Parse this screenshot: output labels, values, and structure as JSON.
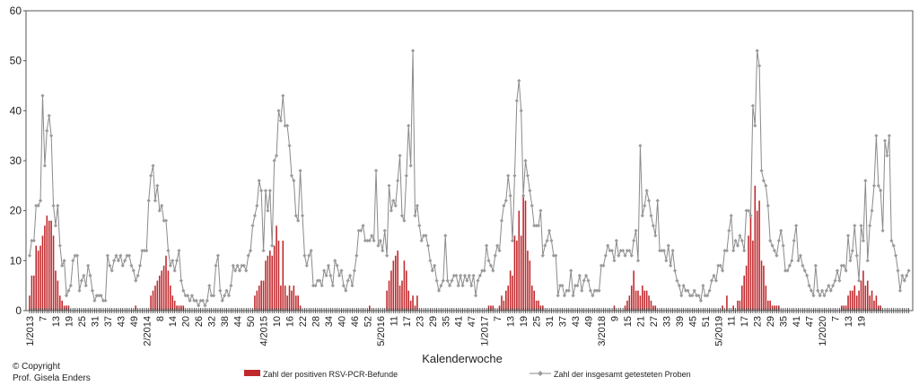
{
  "chart_data": {
    "type": "bar",
    "xlabel": "Kalenderwoche",
    "ylabel": "",
    "ylim": [
      0,
      60
    ],
    "yticks": [
      0,
      10,
      20,
      30,
      40,
      50,
      60
    ],
    "grid": false,
    "legend_position": "bottom",
    "x_tick_labels": [
      "1/2013",
      "7",
      "13",
      "19",
      "25",
      "31",
      "37",
      "43",
      "49",
      "2/2014",
      "8",
      "14",
      "20",
      "26",
      "32",
      "38",
      "44",
      "50",
      "4/2015",
      "10",
      "16",
      "22",
      "28",
      "34",
      "40",
      "46",
      "52",
      "5/2016",
      "11",
      "17",
      "23",
      "29",
      "35",
      "41",
      "47",
      "1/2017",
      "7",
      "13",
      "19",
      "25",
      "31",
      "37",
      "43",
      "49",
      "3/2018",
      "9",
      "15",
      "21",
      "27",
      "33",
      "39",
      "45",
      "51",
      "5/2019",
      "11",
      "17",
      "23",
      "29",
      "35",
      "41",
      "47",
      "1/2020",
      "7",
      "13",
      "19"
    ],
    "series": [
      {
        "name": "Zahl der positiven RSV-PCR-Befunde",
        "kind": "bar",
        "color": "#c0282c",
        "values": [
          3,
          7,
          7,
          13,
          12,
          13,
          15,
          17,
          19,
          18,
          18,
          15,
          8,
          6,
          3,
          2,
          1,
          1,
          1,
          0,
          0,
          0,
          0,
          0,
          0,
          0,
          0,
          0,
          0,
          0,
          0,
          0,
          0,
          0,
          0,
          0,
          0,
          0,
          0,
          0,
          0,
          0,
          0,
          0,
          0,
          0,
          0,
          0,
          0,
          1,
          0,
          0,
          0,
          0,
          0,
          0,
          3,
          4,
          5,
          6,
          7,
          8,
          9,
          11,
          8,
          5,
          3,
          2,
          1,
          1,
          1,
          1,
          0,
          0,
          0,
          0,
          0,
          0,
          0,
          0,
          0,
          0,
          0,
          0,
          0,
          0,
          0,
          0,
          0,
          0,
          0,
          0,
          0,
          0,
          0,
          0,
          0,
          0,
          0,
          0,
          0,
          0,
          0,
          0,
          3,
          4,
          5,
          6,
          6,
          10,
          11,
          12,
          11,
          13,
          17,
          14,
          5,
          14,
          5,
          3,
          5,
          4,
          5,
          3,
          3,
          1,
          0,
          0,
          0,
          0,
          0,
          0,
          0,
          0,
          0,
          0,
          0,
          0,
          0,
          0,
          0,
          0,
          0,
          0,
          0,
          0,
          0,
          0,
          0,
          0,
          0,
          0,
          0,
          0,
          0,
          0,
          0,
          1,
          0,
          0,
          0,
          0,
          0,
          0,
          0,
          4,
          6,
          8,
          10,
          11,
          12,
          5,
          6,
          10,
          8,
          4,
          2,
          3,
          1,
          3,
          0,
          0,
          0,
          0,
          0,
          0,
          0,
          0,
          0,
          0,
          0,
          0,
          0,
          0,
          0,
          0,
          0,
          0,
          0,
          0,
          0,
          0,
          0,
          0,
          0,
          0,
          0,
          0,
          0,
          0,
          0,
          0,
          1,
          1,
          1,
          0,
          0,
          1,
          3,
          2,
          4,
          5,
          8,
          7,
          15,
          14,
          20,
          15,
          23,
          22,
          12,
          10,
          5,
          4,
          2,
          2,
          1,
          1,
          0,
          0,
          0,
          0,
          0,
          0,
          0,
          0,
          0,
          0,
          0,
          0,
          0,
          0,
          0,
          0,
          0,
          0,
          0,
          0,
          0,
          0,
          0,
          0,
          0,
          0,
          0,
          0,
          0,
          0,
          0,
          0,
          1,
          0,
          0,
          0,
          0,
          1,
          2,
          3,
          5,
          8,
          4,
          4,
          3,
          5,
          4,
          4,
          3,
          2,
          1,
          1,
          0,
          0,
          0,
          0,
          0,
          0,
          0,
          0,
          0,
          0,
          0,
          0,
          0,
          0,
          0,
          0,
          0,
          0,
          0,
          0,
          0,
          0,
          0,
          0,
          0,
          0,
          0,
          0,
          0,
          0,
          1,
          0,
          3,
          0,
          0,
          1,
          0,
          2,
          2,
          5,
          7,
          9,
          15,
          19,
          14,
          25,
          20,
          22,
          10,
          9,
          5,
          2,
          2,
          1,
          1,
          1,
          1,
          0,
          0,
          0,
          0,
          0,
          0,
          0,
          0,
          0,
          0,
          0,
          0,
          0,
          0,
          0,
          0,
          0,
          0,
          0,
          0,
          0,
          0,
          0,
          0,
          0,
          0,
          0,
          0,
          1,
          1,
          1,
          3,
          4,
          4,
          5,
          3,
          4,
          6,
          8,
          5,
          6,
          3,
          4,
          2,
          3,
          1,
          1,
          0,
          0,
          0,
          0,
          0,
          0,
          0,
          0,
          0,
          0,
          0,
          0,
          0,
          0,
          0
        ]
      },
      {
        "name": "Zahl der insgesamt getesteten Proben",
        "kind": "line",
        "color": "#8a8a8a",
        "values": [
          11,
          14,
          14,
          21,
          21,
          22,
          43,
          29,
          36,
          39,
          35,
          21,
          17,
          21,
          13,
          9,
          10,
          3,
          4,
          5,
          10,
          11,
          11,
          4,
          6,
          7,
          5,
          9,
          7,
          4,
          2,
          3,
          3,
          3,
          2,
          2,
          11,
          9,
          8,
          10,
          11,
          10,
          11,
          9,
          10,
          11,
          11,
          9,
          8,
          6,
          7,
          9,
          12,
          12,
          12,
          22,
          27,
          29,
          22,
          25,
          20,
          21,
          18,
          18,
          12,
          9,
          10,
          8,
          10,
          12,
          6,
          4,
          3,
          3,
          2,
          3,
          2,
          2,
          1,
          2,
          2,
          1,
          2,
          5,
          3,
          3,
          9,
          11,
          4,
          2,
          3,
          4,
          3,
          5,
          9,
          8,
          9,
          8,
          9,
          9,
          8,
          11,
          12,
          17,
          19,
          21,
          26,
          24,
          12,
          24,
          20,
          24,
          13,
          30,
          31,
          40,
          38,
          43,
          37,
          37,
          33,
          27,
          26,
          19,
          18,
          28,
          19,
          11,
          9,
          11,
          12,
          5,
          5,
          6,
          6,
          5,
          8,
          7,
          9,
          7,
          5,
          10,
          9,
          7,
          8,
          5,
          4,
          6,
          7,
          5,
          8,
          11,
          16,
          16,
          17,
          14,
          14,
          14,
          15,
          14,
          28,
          13,
          14,
          12,
          16,
          11,
          25,
          20,
          22,
          21,
          26,
          31,
          19,
          18,
          27,
          37,
          29,
          52,
          19,
          21,
          17,
          14,
          15,
          15,
          13,
          10,
          8,
          9,
          6,
          4,
          5,
          6,
          15,
          6,
          5,
          6,
          7,
          7,
          5,
          7,
          5,
          7,
          6,
          7,
          5,
          7,
          3,
          6,
          7,
          8,
          8,
          13,
          10,
          9,
          8,
          11,
          13,
          12,
          18,
          21,
          22,
          27,
          23,
          14,
          27,
          42,
          46,
          40,
          23,
          30,
          27,
          24,
          21,
          17,
          17,
          17,
          20,
          11,
          13,
          14,
          16,
          14,
          11,
          11,
          3,
          5,
          5,
          3,
          4,
          4,
          8,
          3,
          5,
          5,
          7,
          4,
          6,
          7,
          6,
          4,
          3,
          4,
          4,
          4,
          9,
          9,
          11,
          13,
          12,
          12,
          10,
          14,
          11,
          12,
          12,
          11,
          12,
          12,
          11,
          14,
          16,
          10,
          33,
          19,
          21,
          24,
          22,
          19,
          17,
          15,
          22,
          12,
          12,
          12,
          10,
          13,
          9,
          12,
          8,
          6,
          5,
          3,
          5,
          4,
          4,
          3,
          3,
          4,
          3,
          3,
          2,
          5,
          3,
          3,
          4,
          6,
          7,
          6,
          9,
          9,
          8,
          12,
          12,
          16,
          19,
          12,
          14,
          13,
          15,
          14,
          12,
          20,
          20,
          19,
          41,
          37,
          52,
          49,
          28,
          26,
          25,
          21,
          14,
          13,
          12,
          11,
          14,
          16,
          13,
          8,
          8,
          9,
          10,
          14,
          17,
          10,
          11,
          9,
          8,
          7,
          5,
          4,
          3,
          9,
          4,
          3,
          4,
          3,
          4,
          5,
          4,
          5,
          6,
          8,
          6,
          9,
          9,
          8,
          15,
          10,
          12,
          17,
          11,
          6,
          17,
          14,
          26,
          10,
          17,
          20,
          25,
          35,
          25,
          24,
          16,
          34,
          31,
          35,
          14,
          13,
          11,
          8,
          4,
          7,
          6,
          7,
          8
        ]
      }
    ]
  },
  "legend": {
    "bar_label": "Zahl der positiven RSV-PCR-Befunde",
    "line_label": "Zahl der insgesamt getesteten Proben"
  },
  "copyright": {
    "line1": "© Copyright",
    "line2": "Prof. Gisela Enders"
  }
}
